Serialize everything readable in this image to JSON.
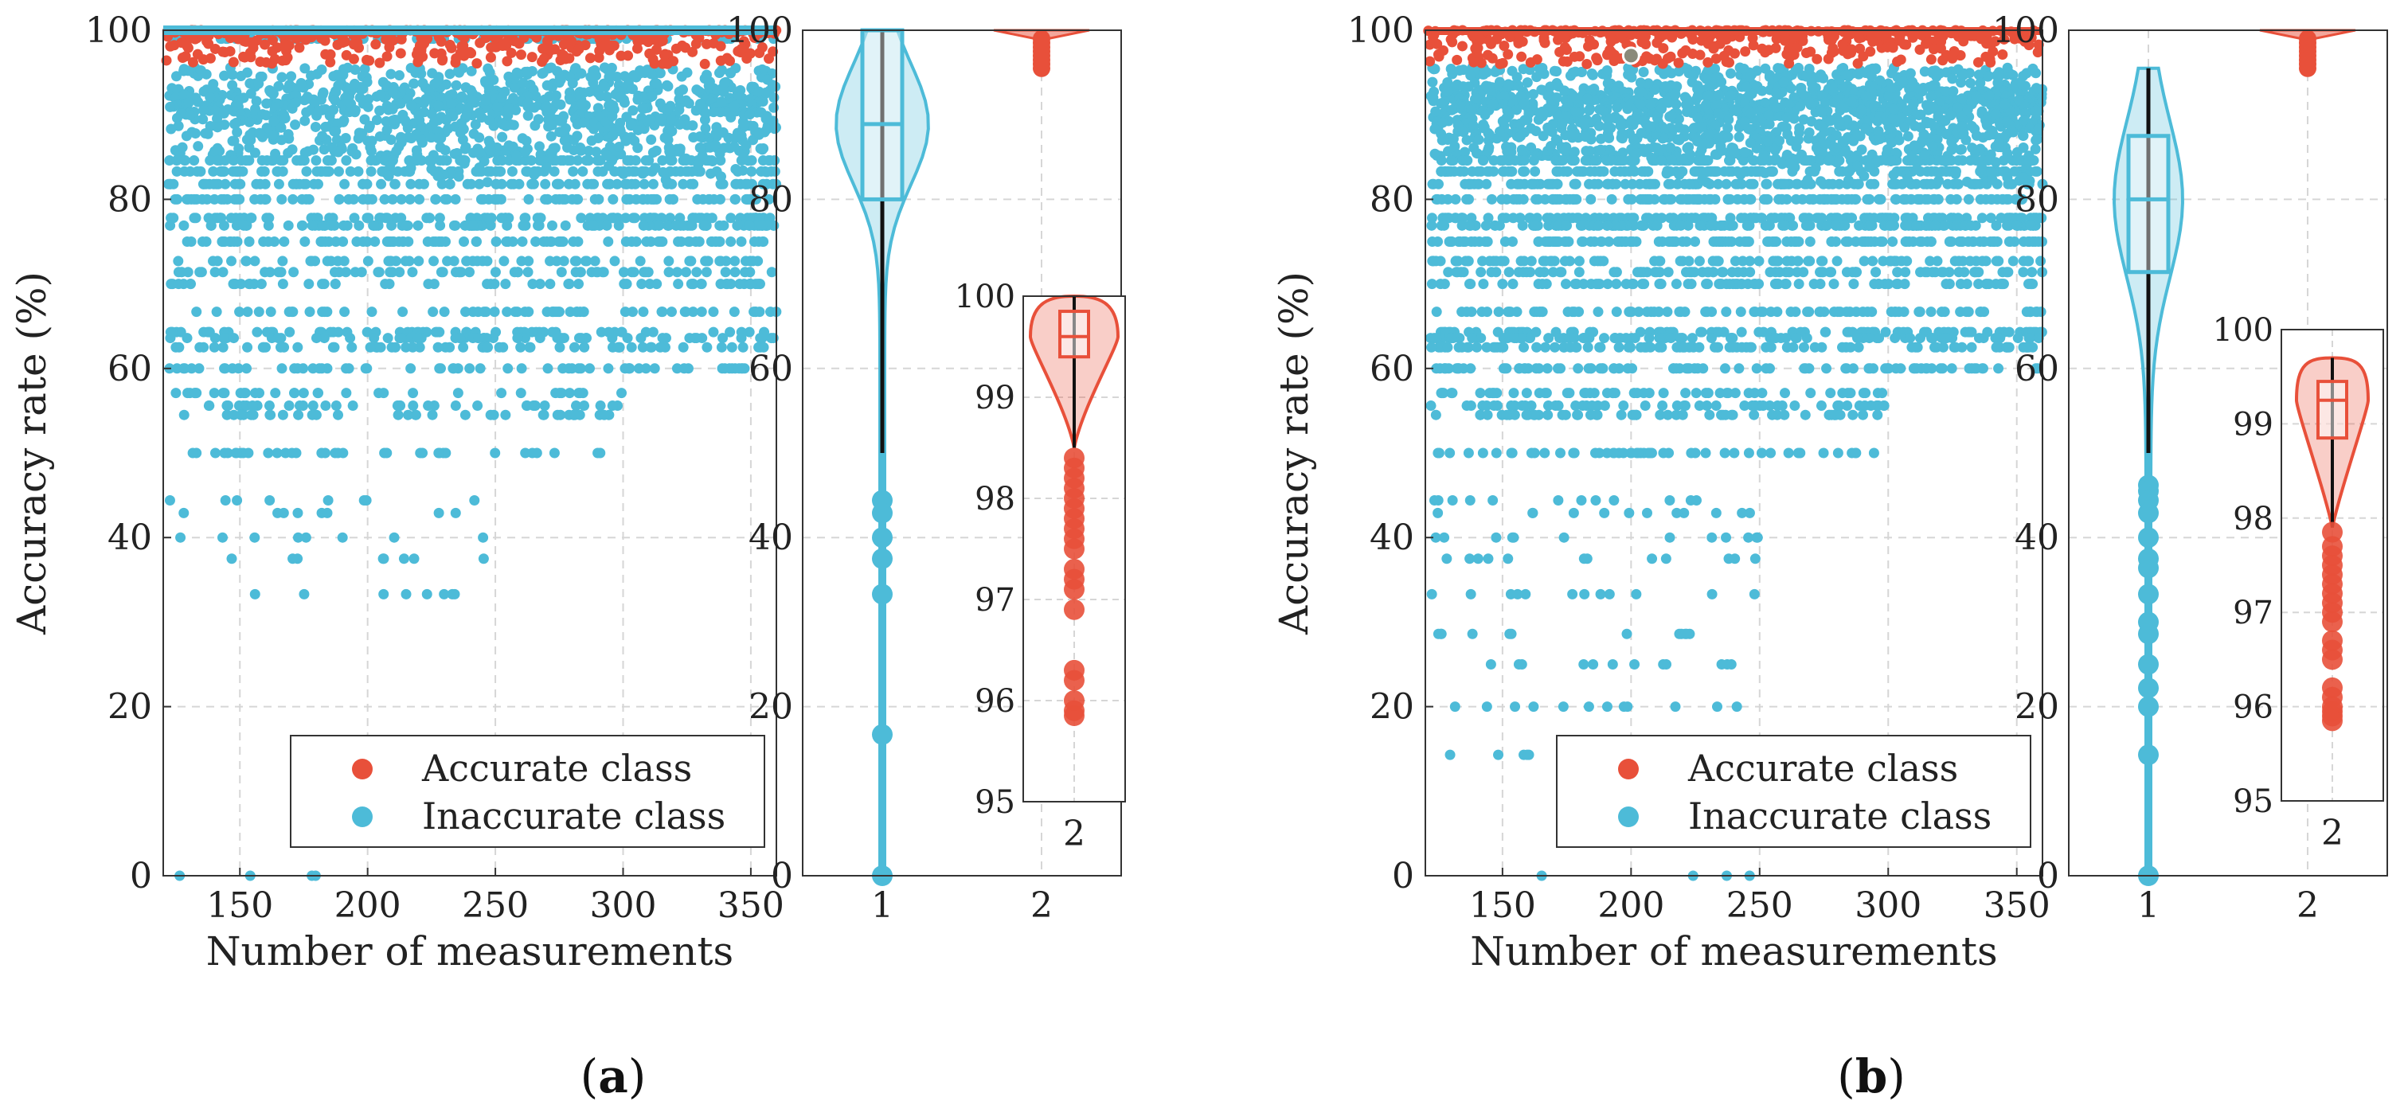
{
  "colors": {
    "accurate": "#e8503a",
    "inaccurate": "#4dbbd8",
    "grid": "#d6d6d6",
    "axis": "#333333",
    "highlight": "#8a8a7a"
  },
  "chart_data": [
    {
      "panel": "a",
      "caption": {
        "open": "(",
        "letter": "a",
        "close": ")"
      },
      "scatter": {
        "type": "scatter",
        "xlabel": "Number of measurements",
        "ylabel": "Accuracy rate (%)",
        "xlim": [
          120,
          360
        ],
        "ylim": [
          0,
          100
        ],
        "xticks": [
          150,
          200,
          250,
          300,
          350
        ],
        "yticks": [
          0,
          20,
          40,
          60,
          80,
          100
        ],
        "legend": {
          "position": "bottom-right",
          "entries": [
            "Accurate class",
            "Inaccurate class"
          ]
        },
        "series": [
          {
            "name": "Accurate class",
            "description": "dense band of points",
            "y_range": [
              96,
              100
            ]
          },
          {
            "name": "Inaccurate class",
            "description": "points at discrete fraction levels",
            "levels": [
              100,
              95,
              93.3,
              92.3,
              91.7,
              90.9,
              90,
              88.9,
              87.5,
              85.7,
              84.6,
              83.3,
              81.8,
              80,
              77.8,
              76.9,
              75,
              72.7,
              71.4,
              70,
              66.7,
              64.3,
              63.6,
              62.5,
              60,
              57.1,
              55.6,
              54.5,
              50,
              44.4,
              42.9,
              40,
              37.5,
              33.3,
              0
            ]
          }
        ]
      },
      "violin": {
        "type": "violin",
        "categories": [
          "1",
          "2"
        ],
        "ylim": [
          0,
          100
        ],
        "yticks": [
          0,
          20,
          40,
          60,
          80,
          100
        ],
        "groups": [
          {
            "name": "Inaccurate class",
            "category": "1",
            "q1": 80,
            "median": 88.9,
            "q3": 100,
            "whisker_low": 50,
            "whisker_high": 100,
            "outliers": [
              44.4,
              42.9,
              40,
              37.5,
              33.3,
              16.7,
              0
            ]
          },
          {
            "name": "Accurate class",
            "category": "2",
            "q1": 99.7,
            "median": 100,
            "q3": 100,
            "whisker_low": 98.9,
            "whisker_high": 100
          }
        ],
        "inset": {
          "category": "2",
          "ylim": [
            95,
            100
          ],
          "yticks": [
            95,
            96,
            97,
            98,
            99,
            100
          ],
          "q1": 99.4,
          "median": 99.6,
          "q3": 99.85,
          "whisker_low": 98.5,
          "whisker_high": 100,
          "outliers": [
            98.4,
            98.3,
            98.2,
            98.1,
            98.0,
            97.9,
            97.8,
            97.7,
            97.6,
            97.5,
            97.3,
            97.2,
            97.1,
            96.9,
            96.3,
            96.2,
            96.0,
            95.9,
            95.85
          ]
        }
      }
    },
    {
      "panel": "b",
      "caption": {
        "open": "(",
        "letter": "b",
        "close": ")"
      },
      "scatter": {
        "type": "scatter",
        "xlabel": "Number of measurements",
        "ylabel": "Accuracy rate (%)",
        "xlim": [
          120,
          360
        ],
        "ylim": [
          0,
          100
        ],
        "xticks": [
          150,
          200,
          250,
          300,
          350
        ],
        "yticks": [
          0,
          20,
          40,
          60,
          80,
          100
        ],
        "legend": {
          "position": "bottom-right",
          "entries": [
            "Accurate class",
            "Inaccurate class"
          ]
        },
        "highlight_point": {
          "x": 200,
          "y": 97
        },
        "series": [
          {
            "name": "Accurate class",
            "description": "dense band of points",
            "y_range": [
              96,
              100
            ]
          },
          {
            "name": "Inaccurate class",
            "description": "points at discrete fraction levels",
            "levels": [
              95,
              93.3,
              92.3,
              91.7,
              90.9,
              90,
              88.9,
              87.5,
              85.7,
              84.6,
              83.3,
              81.8,
              80,
              77.8,
              76.9,
              75,
              72.7,
              71.4,
              70,
              66.7,
              64.3,
              63.6,
              62.5,
              60,
              57.1,
              55.6,
              54.5,
              50,
              44.4,
              42.9,
              40,
              37.5,
              33.3,
              28.6,
              25,
              20,
              14.3,
              0
            ]
          }
        ]
      },
      "violin": {
        "type": "violin",
        "categories": [
          "1",
          "2"
        ],
        "ylim": [
          0,
          100
        ],
        "yticks": [
          0,
          20,
          40,
          60,
          80,
          100
        ],
        "groups": [
          {
            "name": "Inaccurate class",
            "category": "1",
            "q1": 71.4,
            "median": 80,
            "q3": 87.5,
            "whisker_low": 50,
            "whisker_high": 95.5,
            "outliers": [
              46.2,
              45.5,
              44.4,
              42.9,
              40,
              37.5,
              36.4,
              33.3,
              30,
              28.6,
              25,
              22.2,
              20,
              14.3,
              0
            ]
          },
          {
            "name": "Accurate class",
            "category": "2",
            "q1": 99.2,
            "median": 99.6,
            "q3": 100,
            "whisker_low": 98,
            "whisker_high": 100
          }
        ],
        "inset": {
          "category": "2",
          "ylim": [
            95,
            100
          ],
          "yticks": [
            95,
            96,
            97,
            98,
            99,
            100
          ],
          "q1": 98.85,
          "median": 99.25,
          "q3": 99.45,
          "whisker_low": 97.9,
          "whisker_high": 99.7,
          "outliers": [
            97.85,
            97.7,
            97.6,
            97.5,
            97.4,
            97.3,
            97.2,
            97.1,
            97.0,
            96.9,
            96.7,
            96.6,
            96.5,
            96.2,
            96.1,
            96.0,
            95.95,
            95.9,
            95.85
          ]
        }
      }
    }
  ]
}
